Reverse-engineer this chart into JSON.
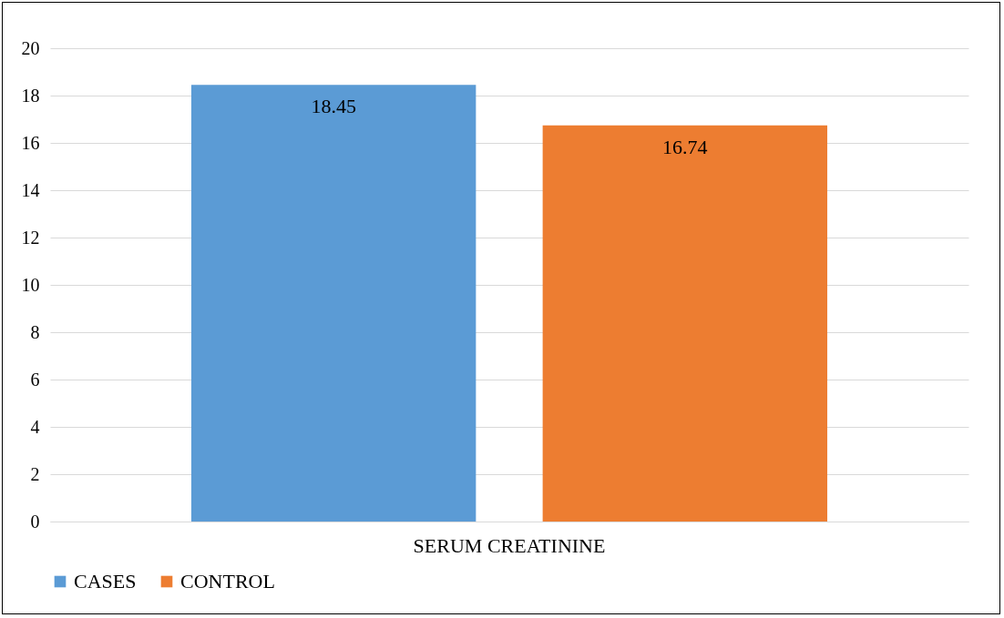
{
  "chart_data": {
    "type": "bar",
    "categories": [
      "SERUM CREATININE"
    ],
    "series": [
      {
        "name": "CASES",
        "color": "#5b9bd5",
        "values": [
          18.45
        ]
      },
      {
        "name": "CONTROL",
        "color": "#ed7d31",
        "values": [
          16.74
        ]
      }
    ],
    "ylim": [
      0,
      20
    ],
    "yticks": [
      0,
      2,
      4,
      6,
      8,
      10,
      12,
      14,
      16,
      18,
      20
    ],
    "grid": "y",
    "legend": "bottom",
    "data_labels": true
  }
}
